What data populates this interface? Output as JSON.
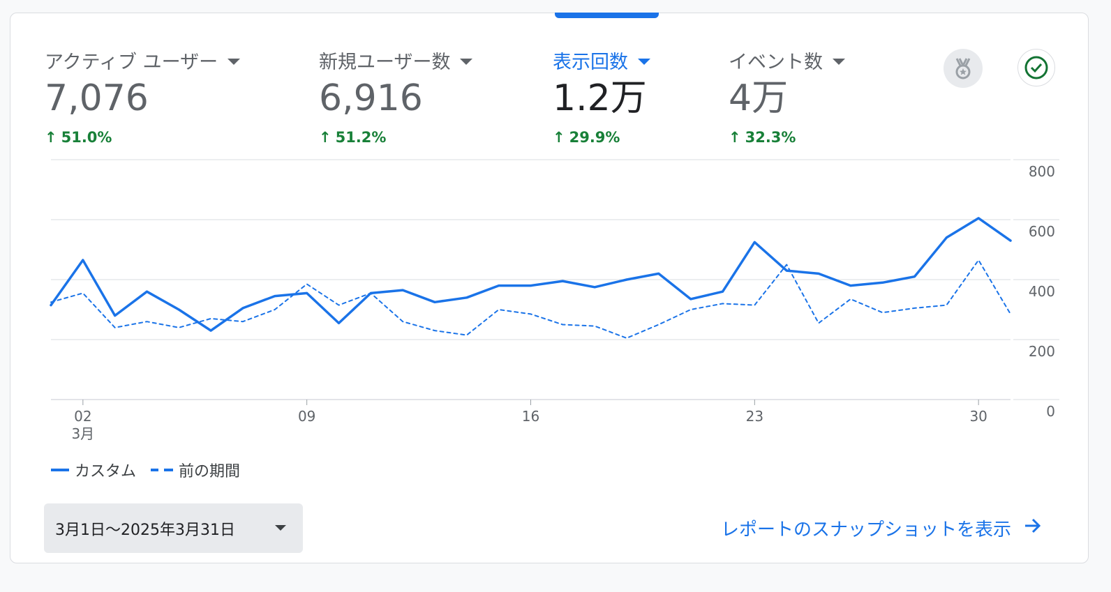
{
  "metrics": [
    {
      "label": "アクティブ ユーザー",
      "value": "7,076",
      "change": "51.0%",
      "active": false
    },
    {
      "label": "新規ユーザー数",
      "value": "6,916",
      "change": "51.2%",
      "active": false
    },
    {
      "label": "表示回数",
      "value": "1.2万",
      "change": "29.9%",
      "active": true
    },
    {
      "label": "イベント数",
      "value": "4万",
      "change": "32.3%",
      "active": false
    }
  ],
  "icons": {
    "badge": "medal-icon",
    "check": "check-circle-icon",
    "caret": "caret-down-icon",
    "arrow_up": "arrow-up-icon",
    "arrow_right": "arrow-right-icon"
  },
  "colors": {
    "primary": "#1a73e8",
    "positive": "#188038",
    "text_muted": "#5f6368",
    "grid": "#dadce0"
  },
  "legend": {
    "current": "カスタム",
    "previous": "前の期間"
  },
  "date_range": "3月1日〜2025年3月31日",
  "report_link": "レポートのスナップショットを表示",
  "chart_data": {
    "type": "line",
    "x": [
      1,
      2,
      3,
      4,
      5,
      6,
      7,
      8,
      9,
      10,
      11,
      12,
      13,
      14,
      15,
      16,
      17,
      18,
      19,
      20,
      21,
      22,
      23,
      24,
      25,
      26,
      27,
      28,
      29,
      30,
      31
    ],
    "x_ticks": [
      {
        "x": 2,
        "label": "02",
        "sublabel": "3月"
      },
      {
        "x": 9,
        "label": "09",
        "sublabel": ""
      },
      {
        "x": 16,
        "label": "16",
        "sublabel": ""
      },
      {
        "x": 23,
        "label": "23",
        "sublabel": ""
      },
      {
        "x": 30,
        "label": "30",
        "sublabel": ""
      }
    ],
    "y_ticks": [
      "0",
      "200",
      "400",
      "600",
      "800"
    ],
    "ylim": [
      0,
      800
    ],
    "y_axis_side": "right",
    "grid": true,
    "legend_position": "bottom-left",
    "series": [
      {
        "name": "カスタム",
        "style": "solid",
        "values": [
          315,
          465,
          280,
          360,
          300,
          230,
          305,
          345,
          355,
          255,
          355,
          365,
          325,
          340,
          380,
          380,
          395,
          375,
          400,
          420,
          335,
          360,
          525,
          430,
          420,
          380,
          390,
          410,
          540,
          605,
          530
        ]
      },
      {
        "name": "前の期間",
        "style": "dashed",
        "values": [
          325,
          355,
          240,
          260,
          240,
          270,
          260,
          300,
          385,
          315,
          355,
          260,
          230,
          215,
          300,
          285,
          250,
          245,
          205,
          250,
          300,
          320,
          315,
          450,
          255,
          335,
          290,
          305,
          315,
          465,
          285
        ]
      }
    ]
  }
}
